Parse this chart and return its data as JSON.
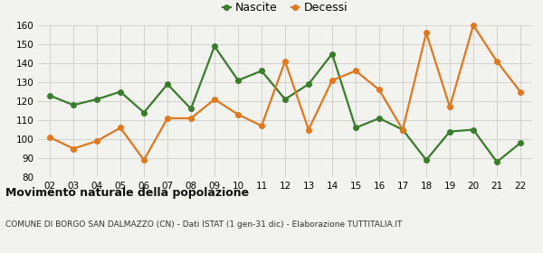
{
  "years": [
    "02",
    "03",
    "04",
    "05",
    "06",
    "07",
    "08",
    "09",
    "10",
    "11",
    "12",
    "13",
    "14",
    "15",
    "16",
    "17",
    "18",
    "19",
    "20",
    "21",
    "22"
  ],
  "nascite": [
    123,
    118,
    121,
    125,
    114,
    129,
    116,
    149,
    131,
    136,
    121,
    129,
    145,
    106,
    111,
    105,
    89,
    104,
    105,
    88,
    98
  ],
  "decessi": [
    101,
    95,
    99,
    106,
    89,
    111,
    111,
    121,
    113,
    107,
    141,
    105,
    131,
    136,
    126,
    105,
    156,
    117,
    160,
    141,
    125
  ],
  "nascite_color": "#3a7d2c",
  "decessi_color": "#e07820",
  "title": "Movimento naturale della popolazione",
  "subtitle": "COMUNE DI BORGO SAN DALMAZZO (CN) - Dati ISTAT (1 gen-31 dic) - Elaborazione TUTTITALIA.IT",
  "ylim": [
    80,
    160
  ],
  "yticks": [
    80,
    90,
    100,
    110,
    120,
    130,
    140,
    150,
    160
  ],
  "bg_color": "#f2f2ee",
  "grid_color": "#cccccc",
  "legend_nascite": "Nascite",
  "legend_decessi": "Decessi",
  "marker_size": 4,
  "line_width": 1.6,
  "title_fontsize": 9,
  "subtitle_fontsize": 6.5,
  "tick_fontsize": 7.5
}
